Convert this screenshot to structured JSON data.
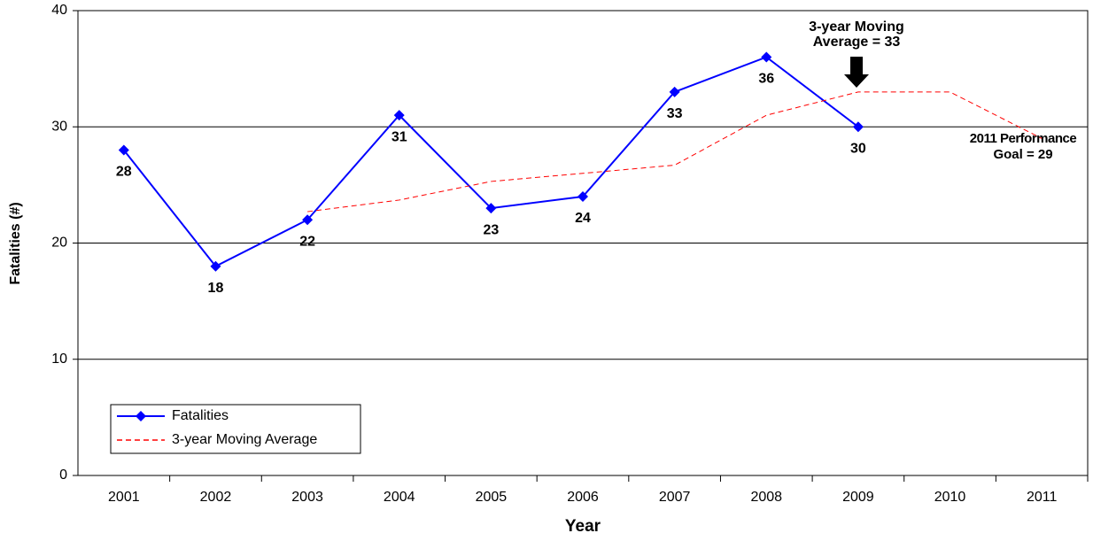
{
  "chart_data": {
    "type": "line",
    "y_label": "Fatalities (#)",
    "x_label": "Year",
    "categories": [
      "2001",
      "2002",
      "2003",
      "2004",
      "2005",
      "2006",
      "2007",
      "2008",
      "2009",
      "2010",
      "2011"
    ],
    "series": [
      {
        "name": "Fatalities",
        "color": "#0000ff",
        "values": [
          28,
          18,
          22,
          31,
          23,
          24,
          33,
          36,
          30,
          null,
          null
        ]
      },
      {
        "name": "3-year Moving Average",
        "color": "#ff0000",
        "values": [
          null,
          null,
          22.7,
          23.7,
          25.3,
          26,
          26.7,
          31,
          33,
          33,
          29
        ]
      }
    ],
    "ylim": [
      0,
      40
    ],
    "yticks": [
      0,
      10,
      20,
      30,
      40
    ],
    "grid": true,
    "annotations": [
      {
        "lines": [
          "3-year Moving",
          "Average = 33"
        ]
      },
      {
        "lines": [
          "2011 Performance",
          "Goal = 29"
        ]
      }
    ]
  }
}
